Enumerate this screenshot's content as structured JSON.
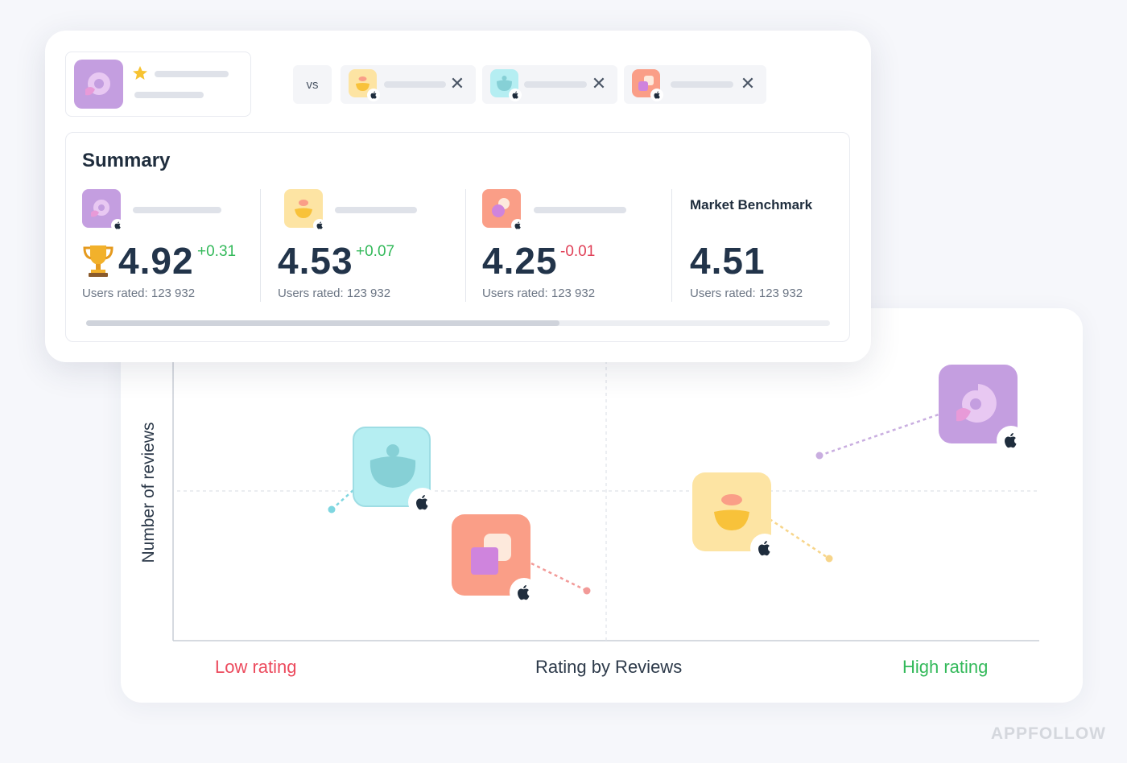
{
  "compare": {
    "vs_label": "vs",
    "close_glyph": "✕"
  },
  "summary": {
    "title": "Summary",
    "columns": [
      {
        "rating": "4.92",
        "delta": "+0.31",
        "users_rated": "Users rated: 123 932",
        "winner": true,
        "icon": "purple-swirl-app-icon"
      },
      {
        "rating": "4.53",
        "delta": "+0.07",
        "users_rated": "Users rated: 123 932",
        "icon": "yellow-smile-app-icon"
      },
      {
        "rating": "4.25",
        "delta": "-0.01",
        "users_rated": "Users rated: 123 932",
        "icon": "coral-squares-app-icon"
      },
      {
        "name": "Market Benchmark",
        "rating": "4.51",
        "users_rated": "Users rated: 123 932"
      }
    ]
  },
  "chart": {
    "y_label": "Number of reviews",
    "x_label": "Rating by Reviews",
    "x_low_label": "Low rating",
    "x_high_label": "High rating"
  },
  "colors": {
    "purple_app": "#c49ee0",
    "yellow_app": "#fde4a3",
    "teal_app": "#b5eef2",
    "coral_app": "#fa9e87",
    "positive": "#33b95a",
    "negative": "#e04057"
  },
  "watermark": "APPFOLLOW"
}
